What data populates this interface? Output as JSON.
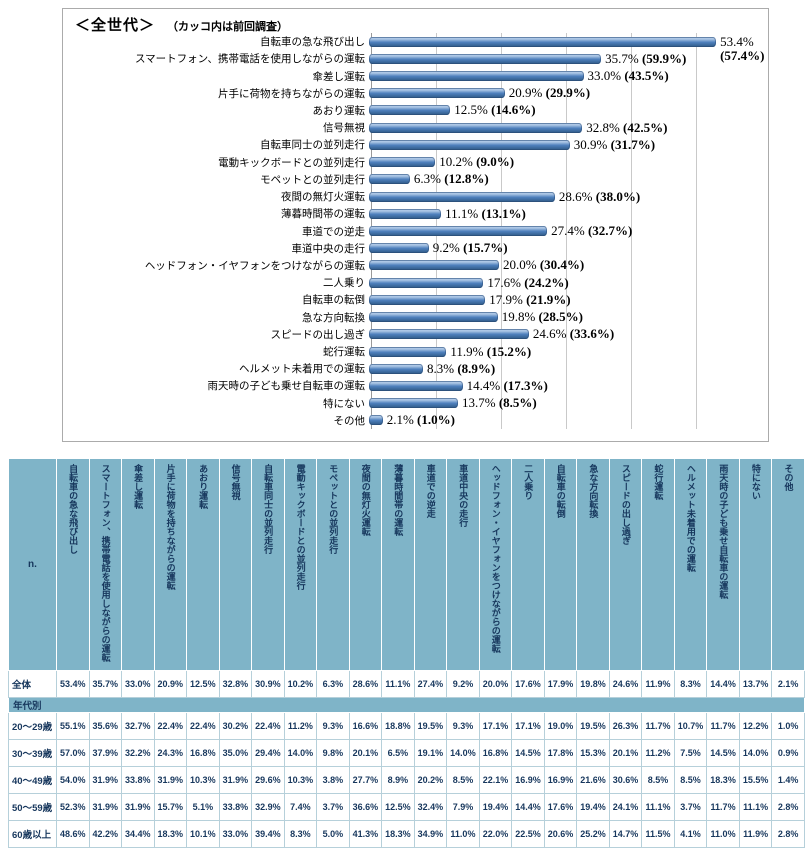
{
  "colors": {
    "bar_blue": "#4f81bd",
    "bar_dark": "#2e5884",
    "table_header_bg": "#7fb4c8",
    "table_text": "#17375d",
    "gridline": "#c9c9c9"
  },
  "chart_data": [
    {
      "type": "bar",
      "orientation": "horizontal",
      "title": "＜全世代＞",
      "subtitle": "（カッコ内は前回調査）",
      "value_suffix": "%",
      "xlim": [
        0,
        60
      ],
      "gridline_step": 10,
      "grid": true,
      "legend": "none",
      "categories": [
        "自転車の急な飛び出し",
        "スマートフォン、携帯電話を使用しながらの運転",
        "傘差し運転",
        "片手に荷物を持ちながらの運転",
        "あおり運転",
        "信号無視",
        "自転車同士の並列走行",
        "電動キックボードとの並列走行",
        "モペットとの並列走行",
        "夜間の無灯火運転",
        "薄暮時間帯の運転",
        "車道での逆走",
        "車道中央の走行",
        "ヘッドフォン・イヤフォンをつけながらの運転",
        "二人乗り",
        "自転車の転倒",
        "急な方向転換",
        "スピードの出し過ぎ",
        "蛇行運転",
        "ヘルメット未着用での運転",
        "雨天時の子ども乗せ自転車の運転",
        "特にない",
        "その他"
      ],
      "values": [
        53.4,
        35.7,
        33.0,
        20.9,
        12.5,
        32.8,
        30.9,
        10.2,
        6.3,
        28.6,
        11.1,
        27.4,
        9.2,
        20.0,
        17.6,
        17.9,
        19.8,
        24.6,
        11.9,
        8.3,
        14.4,
        13.7,
        2.1
      ],
      "previous_values": [
        57.4,
        59.9,
        43.5,
        29.9,
        14.6,
        42.5,
        31.7,
        9.0,
        12.8,
        38.0,
        13.1,
        32.7,
        15.7,
        30.4,
        24.2,
        21.9,
        28.5,
        33.6,
        15.2,
        8.9,
        17.3,
        8.5,
        1.0
      ]
    },
    {
      "type": "table",
      "corner_label": "n.",
      "columns": [
        "自転車の急な飛び出し",
        "スマートフォン、携帯電話を使用しながらの運転",
        "傘差し運転",
        "片手に荷物を持ちながらの運転",
        "あおり運転",
        "信号無視",
        "自転車同士の並列走行",
        "電動キックボードとの並列走行",
        "モペットとの並列走行",
        "夜間の無灯火運転",
        "薄暮時間帯の運転",
        "車道での逆走",
        "車道中央の走行",
        "ヘッドフォン・イヤフォンをつけながらの運転",
        "二人乗り",
        "自転車の転倒",
        "急な方向転換",
        "スピードの出し過ぎ",
        "蛇行運転",
        "ヘルメット未着用での運転",
        "雨天時の子ども乗せ自転車の運転",
        "特にない",
        "その他"
      ],
      "rows": [
        {
          "label": "全体",
          "section": false,
          "values": [
            "53.4%",
            "35.7%",
            "33.0%",
            "20.9%",
            "12.5%",
            "32.8%",
            "30.9%",
            "10.2%",
            "6.3%",
            "28.6%",
            "11.1%",
            "27.4%",
            "9.2%",
            "20.0%",
            "17.6%",
            "17.9%",
            "19.8%",
            "24.6%",
            "11.9%",
            "8.3%",
            "14.4%",
            "13.7%",
            "2.1%"
          ]
        },
        {
          "label": "年代別",
          "section": true,
          "values": []
        },
        {
          "label": "20〜29歳",
          "section": false,
          "values": [
            "55.1%",
            "35.6%",
            "32.7%",
            "22.4%",
            "22.4%",
            "30.2%",
            "22.4%",
            "11.2%",
            "9.3%",
            "16.6%",
            "18.8%",
            "19.5%",
            "9.3%",
            "17.1%",
            "17.1%",
            "19.0%",
            "19.5%",
            "26.3%",
            "11.7%",
            "10.7%",
            "11.7%",
            "12.2%",
            "1.0%"
          ]
        },
        {
          "label": "30〜39歳",
          "section": false,
          "values": [
            "57.0%",
            "37.9%",
            "32.2%",
            "24.3%",
            "16.8%",
            "35.0%",
            "29.4%",
            "14.0%",
            "9.8%",
            "20.1%",
            "6.5%",
            "19.1%",
            "14.0%",
            "16.8%",
            "14.5%",
            "17.8%",
            "15.3%",
            "20.1%",
            "11.2%",
            "7.5%",
            "14.5%",
            "14.0%",
            "0.9%"
          ]
        },
        {
          "label": "40〜49歳",
          "section": false,
          "values": [
            "54.0%",
            "31.9%",
            "33.8%",
            "31.9%",
            "10.3%",
            "31.9%",
            "29.6%",
            "10.3%",
            "3.8%",
            "27.7%",
            "8.9%",
            "20.2%",
            "8.5%",
            "22.1%",
            "16.9%",
            "16.9%",
            "21.6%",
            "30.6%",
            "8.5%",
            "8.5%",
            "18.3%",
            "15.5%",
            "1.4%"
          ]
        },
        {
          "label": "50〜59歳",
          "section": false,
          "values": [
            "52.3%",
            "31.9%",
            "31.9%",
            "15.7%",
            "5.1%",
            "33.8%",
            "32.9%",
            "7.4%",
            "3.7%",
            "36.6%",
            "12.5%",
            "32.4%",
            "7.9%",
            "19.4%",
            "14.4%",
            "17.6%",
            "19.4%",
            "24.1%",
            "11.1%",
            "3.7%",
            "11.7%",
            "11.1%",
            "2.8%"
          ]
        },
        {
          "label": "60歳以上",
          "section": false,
          "values": [
            "48.6%",
            "42.2%",
            "34.4%",
            "18.3%",
            "10.1%",
            "33.0%",
            "39.4%",
            "8.3%",
            "5.0%",
            "41.3%",
            "18.3%",
            "34.9%",
            "11.0%",
            "22.0%",
            "22.5%",
            "20.6%",
            "25.2%",
            "14.7%",
            "11.5%",
            "4.1%",
            "11.0%",
            "11.9%",
            "2.8%"
          ]
        }
      ]
    }
  ]
}
